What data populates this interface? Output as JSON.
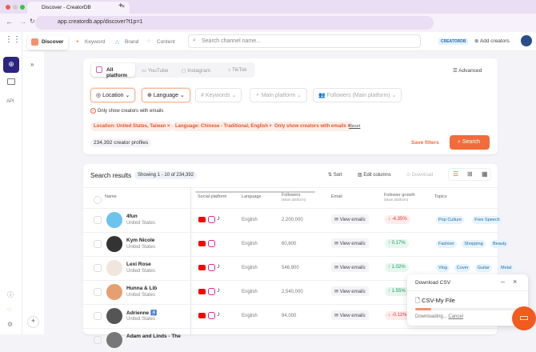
{
  "browser": {
    "tab_title": "Discover - CreatorDB",
    "url": "app.creatordb.app/discover?t1p=1"
  },
  "header": {
    "nav": [
      "Discover",
      "Keyword",
      "Brand",
      "Content"
    ],
    "search_placeholder": "Search channel name...",
    "badge": "CREATORDB",
    "add_creators": "Add creators"
  },
  "rail": {
    "api": "API"
  },
  "filters": {
    "platform_tabs": [
      "All platform",
      "YouTube",
      "Instagram",
      "TikTok"
    ],
    "advanced": "Advanced",
    "dropdowns": [
      "Location",
      "Language",
      "Keywords",
      "Main platform",
      "Followers (Main platform)"
    ],
    "email_checkbox": "Only show creators with emails",
    "chips": [
      "Location: United States, Taiwan ×",
      "Language: Chinese - Traditional, English ×",
      "Only show creators with emails ×"
    ],
    "reset": "Reset",
    "count": "234,392 creator profiles",
    "save": "Save filters",
    "search": "Search"
  },
  "results": {
    "title": "Search results",
    "showing": "Showing 1 - 10 of 234,392",
    "sort": "Sort",
    "edit_columns": "Edit columns",
    "download": "Download",
    "columns": {
      "name": "Name",
      "social": "Social platform",
      "language": "Language",
      "followers": "Followers",
      "followers_sub": "(Main platform)",
      "email": "Email",
      "growth": "Follower growth",
      "growth_sub": "(Main platform)",
      "topics": "Topics"
    },
    "rows": [
      {
        "name": "4fun",
        "country": "United States",
        "tiktok": true,
        "language": "English",
        "followers": "2,200,000",
        "email": "View emails",
        "growth": "-4.35%",
        "up": false,
        "topics": [
          "Pop Culture",
          "Free Speech"
        ]
      },
      {
        "name": "Kym Nicole",
        "country": "United States",
        "tiktok": false,
        "language": "English",
        "followers": "60,600",
        "email": "View emails",
        "growth": "0.17%",
        "up": true,
        "topics": [
          "Fashion",
          "Shopping",
          "Beauty"
        ]
      },
      {
        "name": "Lexi Rose",
        "country": "United States",
        "tiktok": true,
        "language": "English",
        "followers": "546,900",
        "email": "View emails",
        "growth": "1.02%",
        "up": true,
        "topics": [
          "Vlog",
          "Cover",
          "Guitar",
          "Metal"
        ]
      },
      {
        "name": "Hunna & Lib",
        "country": "United States",
        "tiktok": true,
        "language": "English",
        "followers": "2,540,000",
        "email": "View emails",
        "growth": "1.55%",
        "up": true,
        "topics": []
      },
      {
        "name": "Adrienne ♿",
        "country": "United States",
        "tiktok": true,
        "language": "English",
        "followers": "94,000",
        "email": "View emails",
        "growth": "-0.11%",
        "up": false,
        "topics": []
      },
      {
        "name": "Adam and Linds - The",
        "country": "",
        "tiktok": true,
        "language": "",
        "followers": "",
        "email": "",
        "growth": "",
        "up": false,
        "topics": []
      }
    ]
  },
  "download_popup": {
    "title": "Download CSV",
    "file": "CSV-My File",
    "status": "Downloading...",
    "cancel": "Cancel",
    "progress": 0.15
  },
  "colors": {
    "accent": "#f26b3a",
    "rail_active": "#2b2480"
  }
}
